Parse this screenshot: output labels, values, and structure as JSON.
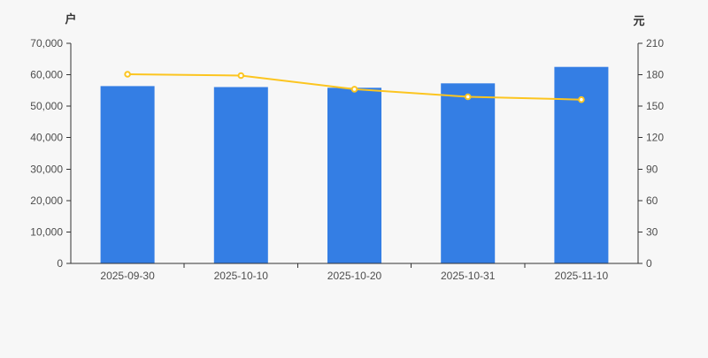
{
  "page": {
    "background_color": "#f7f7f7"
  },
  "chart_data": {
    "type": "bar",
    "title": "",
    "legend_position": "none",
    "grid": false,
    "categories": [
      "2025-09-30",
      "2025-10-10",
      "2025-10-20",
      "2025-10-31",
      "2025-11-10"
    ],
    "series": [
      {
        "type": "bar",
        "y_axis": "left",
        "color": "#347ee4",
        "values": [
          56380,
          56090,
          55860,
          57260,
          62490
        ]
      },
      {
        "type": "line",
        "y_axis": "right",
        "color": "#fcc520",
        "marker": "hollow-circle",
        "marker_fill": "#ffffff",
        "values": [
          180.5,
          179.2,
          166.2,
          159.0,
          156.3
        ]
      }
    ],
    "left_axis": {
      "title": "户",
      "min": 0,
      "max": 70000,
      "step": 10000,
      "tick_labels": [
        "0",
        "10,000",
        "20,000",
        "30,000",
        "40,000",
        "50,000",
        "60,000",
        "70,000"
      ]
    },
    "right_axis": {
      "title": "元",
      "min": 0,
      "max": 210,
      "step": 30,
      "tick_labels": [
        "0",
        "30",
        "60",
        "90",
        "120",
        "150",
        "180",
        "210"
      ]
    },
    "axis_line_color": "#333333",
    "tick_label_color": "#4d4d4d"
  }
}
